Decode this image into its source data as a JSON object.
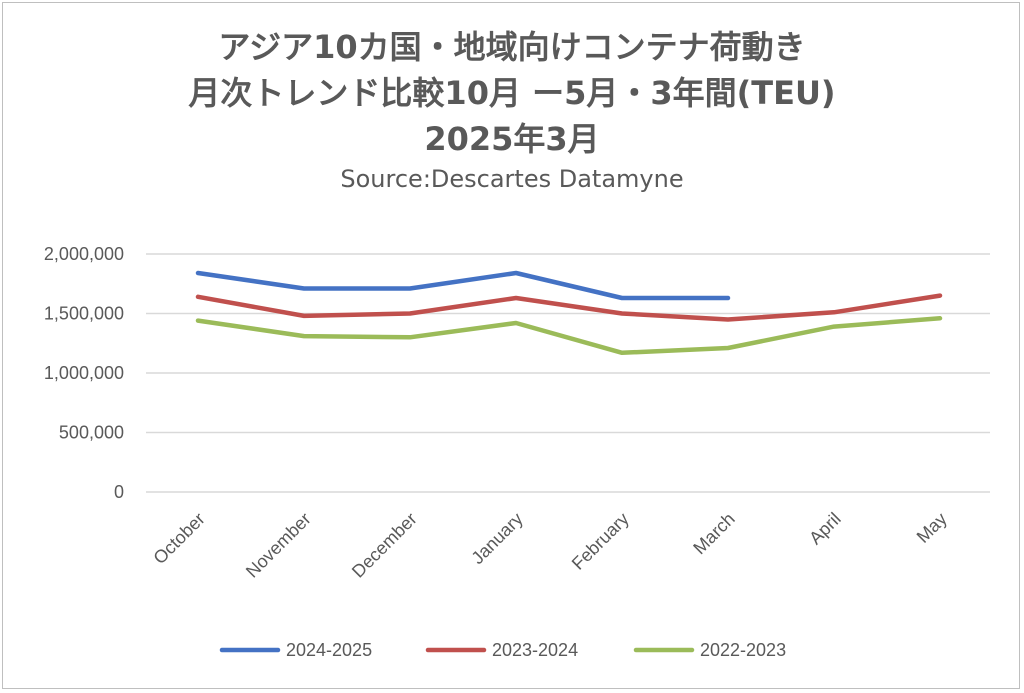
{
  "chart_data": {
    "type": "line",
    "title_lines": [
      "アジア10カ国・地域向けコンテナ荷動き",
      "月次トレンド比較10月 ー5月・3年間(TEU)",
      "2025年3月"
    ],
    "subtitle": "Source:Descartes Datamyne",
    "categories": [
      "October",
      "November",
      "December",
      "January",
      "February",
      "March",
      "April",
      "May"
    ],
    "y_ticks": [
      "0",
      "500,000",
      "1,000,000",
      "1,500,000",
      "2,000,000"
    ],
    "ylim": [
      0,
      2000000
    ],
    "grid": true,
    "legend_position": "bottom",
    "series": [
      {
        "name": "2024-2025",
        "color": "#4472c4",
        "values": [
          1840000,
          1710000,
          1710000,
          1840000,
          1630000,
          1630000,
          null,
          null
        ]
      },
      {
        "name": "2023-2024",
        "color": "#c0504d",
        "values": [
          1640000,
          1480000,
          1500000,
          1630000,
          1500000,
          1450000,
          1510000,
          1650000
        ]
      },
      {
        "name": "2022-2023",
        "color": "#9bbb59",
        "values": [
          1440000,
          1310000,
          1300000,
          1420000,
          1170000,
          1210000,
          1390000,
          1460000
        ]
      }
    ]
  }
}
